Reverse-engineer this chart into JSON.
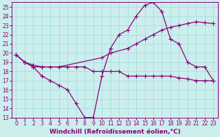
{
  "xlabel": "Windchill (Refroidissement éolien,°C)",
  "background_color": "#cceeed",
  "grid_color": "#99dddd",
  "line_color": "#880077",
  "xlim": [
    -0.5,
    23.5
  ],
  "ylim": [
    13,
    25.5
  ],
  "xticks": [
    0,
    1,
    2,
    3,
    4,
    5,
    6,
    7,
    8,
    9,
    10,
    11,
    12,
    13,
    14,
    15,
    16,
    17,
    18,
    19,
    20,
    21,
    22,
    23
  ],
  "yticks": [
    13,
    14,
    15,
    16,
    17,
    18,
    19,
    20,
    21,
    22,
    23,
    24,
    25
  ],
  "series": [
    {
      "x": [
        0,
        1,
        2,
        3,
        4,
        5,
        6,
        7,
        8,
        9,
        10,
        11,
        12,
        13,
        14,
        15,
        16,
        17,
        18,
        19,
        20,
        21,
        22,
        23
      ],
      "y": [
        19.8,
        19.0,
        18.5,
        17.5,
        17.0,
        16.5,
        16.0,
        14.5,
        13.0,
        13.0,
        17.5,
        20.5,
        22.0,
        22.5,
        24.0,
        25.2,
        25.5,
        24.5,
        21.5,
        21.0,
        19.0,
        18.5,
        18.5,
        17.0
      ]
    },
    {
      "x": [
        0,
        1,
        2,
        3,
        5,
        10,
        11,
        13,
        14,
        15,
        16,
        17,
        18,
        19,
        20,
        21,
        22,
        23
      ],
      "y": [
        19.8,
        19.0,
        18.7,
        18.5,
        18.5,
        19.5,
        20.0,
        20.5,
        21.0,
        21.5,
        22.0,
        22.5,
        22.8,
        23.0,
        23.2,
        23.4,
        23.3,
        23.2
      ]
    },
    {
      "x": [
        0,
        1,
        2,
        3,
        4,
        5,
        6,
        7,
        8,
        9,
        10,
        11,
        12,
        13,
        14,
        15,
        16,
        17,
        18,
        19,
        20,
        21,
        22,
        23
      ],
      "y": [
        19.8,
        19.0,
        18.5,
        18.5,
        18.5,
        18.5,
        18.5,
        18.5,
        18.5,
        18.0,
        18.0,
        18.0,
        18.0,
        17.5,
        17.5,
        17.5,
        17.5,
        17.5,
        17.5,
        17.3,
        17.2,
        17.0,
        17.0,
        17.0
      ]
    }
  ],
  "marker": "+",
  "marker_size": 4,
  "marker_lw": 0.8,
  "line_width": 0.9,
  "font_size": 6.5,
  "tick_font_size": 5.5,
  "xlabel_fontsize": 6.5
}
